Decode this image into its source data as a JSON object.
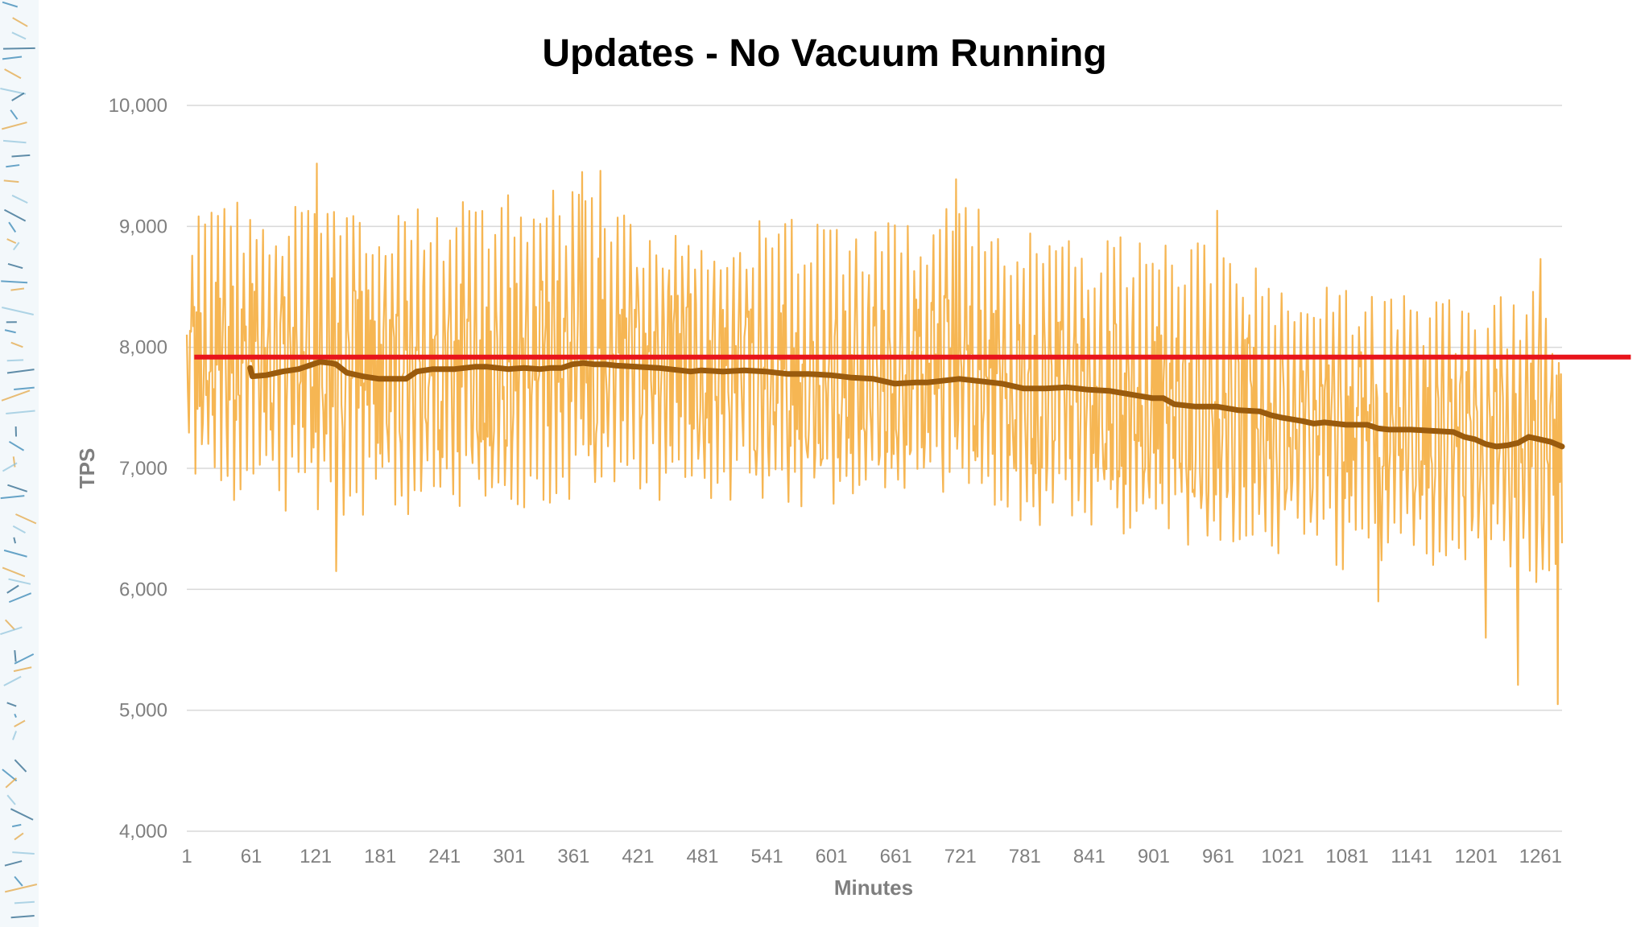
{
  "chart_data": {
    "type": "line",
    "title": "Updates - No Vacuum Running",
    "xlabel": "Minutes",
    "ylabel": "TPS",
    "xlim": [
      1,
      1281
    ],
    "ylim": [
      4000,
      10000
    ],
    "y_ticks": [
      "4,000",
      "5,000",
      "6,000",
      "7,000",
      "8,000",
      "9,000",
      "10,000"
    ],
    "y_tick_values": [
      4000,
      5000,
      6000,
      7000,
      8000,
      9000,
      10000
    ],
    "x_ticks": [
      "1",
      "61",
      "121",
      "181",
      "241",
      "301",
      "361",
      "421",
      "481",
      "541",
      "601",
      "661",
      "721",
      "781",
      "841",
      "901",
      "961",
      "1021",
      "1081",
      "1141",
      "1201",
      "1261"
    ],
    "x_tick_values": [
      1,
      61,
      121,
      181,
      241,
      301,
      361,
      421,
      481,
      541,
      601,
      661,
      721,
      781,
      841,
      901,
      961,
      1021,
      1081,
      1141,
      1201,
      1261
    ],
    "grid": true,
    "colors": {
      "raw": "#f5b24a",
      "moving_average": "#9a5b0d",
      "baseline": "#e8141b",
      "grid": "#d9d9d9",
      "tick_text": "#7f7f7f"
    },
    "series": [
      {
        "style": "raw",
        "note_visible": false,
        "high_envelope": {
          "x": [
            1,
            61,
            121,
            181,
            241,
            301,
            361,
            421,
            481,
            541,
            601,
            661,
            721,
            781,
            841,
            901,
            961,
            1021,
            1081,
            1141,
            1201,
            1261,
            1281
          ],
          "y": [
            9200,
            9200,
            9300,
            9200,
            9200,
            9300,
            9300,
            9100,
            9100,
            9100,
            9000,
            9100,
            9200,
            9000,
            8950,
            8950,
            8850,
            8650,
            8600,
            8500,
            8350,
            8550,
            8300
          ]
        },
        "low_envelope": {
          "x": [
            1,
            61,
            121,
            181,
            241,
            301,
            361,
            421,
            481,
            541,
            601,
            661,
            721,
            781,
            841,
            901,
            961,
            1021,
            1081,
            1141,
            1201,
            1261,
            1281
          ],
          "y": [
            6800,
            6700,
            6600,
            6600,
            6600,
            6650,
            6700,
            6750,
            6700,
            6700,
            6650,
            6700,
            6700,
            6500,
            6450,
            6350,
            6350,
            6250,
            6150,
            6150,
            6100,
            6000,
            5900
          ]
        },
        "mid": {
          "x": [
            1,
            61,
            121,
            181,
            241,
            301,
            361,
            421,
            481,
            541,
            601,
            661,
            721,
            781,
            841,
            901,
            961,
            1021,
            1081,
            1141,
            1201,
            1261,
            1281
          ],
          "y": [
            7900,
            7900,
            7900,
            7800,
            7800,
            7850,
            7900,
            7850,
            7800,
            7800,
            7700,
            7750,
            7800,
            7600,
            7600,
            7500,
            7450,
            7350,
            7300,
            7300,
            7200,
            7250,
            7150
          ]
        },
        "spikes_high": [
          [
            122,
            9520
          ],
          [
            369,
            9450
          ],
          [
            386,
            9460
          ],
          [
            717,
            9390
          ],
          [
            960,
            9130
          ],
          [
            1261,
            8730
          ]
        ],
        "spikes_low": [
          [
            140,
            6150
          ],
          [
            1110,
            5900
          ],
          [
            1210,
            5600
          ],
          [
            1240,
            5210
          ],
          [
            1277,
            5050
          ]
        ]
      },
      {
        "style": "moving_average",
        "x": [
          60,
          62,
          75,
          90,
          105,
          115,
          125,
          135,
          140,
          150,
          165,
          180,
          195,
          205,
          215,
          230,
          250,
          260,
          270,
          280,
          300,
          315,
          330,
          340,
          350,
          360,
          370,
          380,
          390,
          400,
          420,
          440,
          460,
          470,
          480,
          500,
          520,
          540,
          560,
          580,
          600,
          610,
          620,
          640,
          650,
          660,
          680,
          690,
          700,
          710,
          720,
          740,
          760,
          770,
          780,
          800,
          820,
          840,
          860,
          880,
          900,
          910,
          920,
          940,
          960,
          980,
          1000,
          1010,
          1020,
          1040,
          1050,
          1060,
          1080,
          1100,
          1110,
          1120,
          1140,
          1160,
          1180,
          1190,
          1200,
          1210,
          1220,
          1230,
          1240,
          1250,
          1260,
          1270,
          1281
        ],
        "y": [
          7830,
          7760,
          7770,
          7800,
          7820,
          7850,
          7880,
          7870,
          7860,
          7790,
          7760,
          7740,
          7740,
          7740,
          7800,
          7820,
          7820,
          7830,
          7840,
          7840,
          7820,
          7830,
          7820,
          7830,
          7830,
          7860,
          7870,
          7860,
          7860,
          7850,
          7840,
          7830,
          7810,
          7800,
          7810,
          7800,
          7810,
          7800,
          7780,
          7780,
          7770,
          7760,
          7750,
          7740,
          7720,
          7700,
          7710,
          7710,
          7720,
          7730,
          7740,
          7720,
          7700,
          7680,
          7660,
          7660,
          7670,
          7650,
          7640,
          7610,
          7580,
          7580,
          7530,
          7510,
          7510,
          7480,
          7470,
          7440,
          7420,
          7390,
          7370,
          7380,
          7360,
          7360,
          7330,
          7320,
          7320,
          7310,
          7300,
          7260,
          7240,
          7200,
          7180,
          7190,
          7210,
          7260,
          7240,
          7220,
          7180
        ]
      },
      {
        "style": "baseline",
        "x": [
          8,
          1345
        ],
        "y": [
          7920,
          7920
        ]
      }
    ]
  }
}
